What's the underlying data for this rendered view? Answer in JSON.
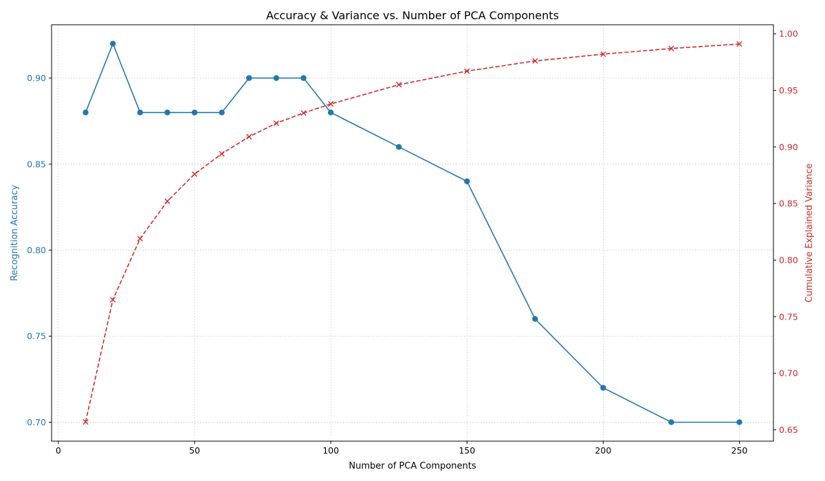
{
  "chart_data": {
    "type": "line",
    "title": "Accuracy & Variance vs. Number of PCA Components",
    "xlabel": "Number of PCA Components",
    "ylabel_left": "Recognition Accuracy",
    "ylabel_right": "Cumulative Explained Variance",
    "xlim": [
      -2.5,
      262.5
    ],
    "ylim_left": [
      0.689,
      0.931
    ],
    "ylim_right": [
      0.64,
      1.008
    ],
    "xticks": [
      0,
      50,
      100,
      150,
      200,
      250
    ],
    "yticks_left": [
      0.7,
      0.75,
      0.8,
      0.85,
      0.9
    ],
    "yticks_right": [
      0.65,
      0.7,
      0.75,
      0.8,
      0.85,
      0.9,
      0.95,
      1.0
    ],
    "grid": true,
    "x": [
      10,
      20,
      30,
      40,
      50,
      60,
      70,
      80,
      90,
      100,
      125,
      150,
      175,
      200,
      225,
      250
    ],
    "series": [
      {
        "name": "Recognition Accuracy",
        "axis": "left",
        "color": "#1f77b4",
        "marker": "circle",
        "linestyle": "solid",
        "values": [
          0.88,
          0.92,
          0.88,
          0.88,
          0.88,
          0.88,
          0.9,
          0.9,
          0.9,
          0.88,
          0.86,
          0.84,
          0.76,
          0.72,
          0.7,
          0.7
        ]
      },
      {
        "name": "Cumulative Explained Variance",
        "axis": "right",
        "color": "#d62728",
        "marker": "x",
        "linestyle": "dashed",
        "values": [
          0.657,
          0.765,
          0.819,
          0.852,
          0.876,
          0.894,
          0.909,
          0.921,
          0.93,
          0.938,
          0.955,
          0.967,
          0.976,
          0.982,
          0.987,
          0.991
        ]
      }
    ]
  }
}
